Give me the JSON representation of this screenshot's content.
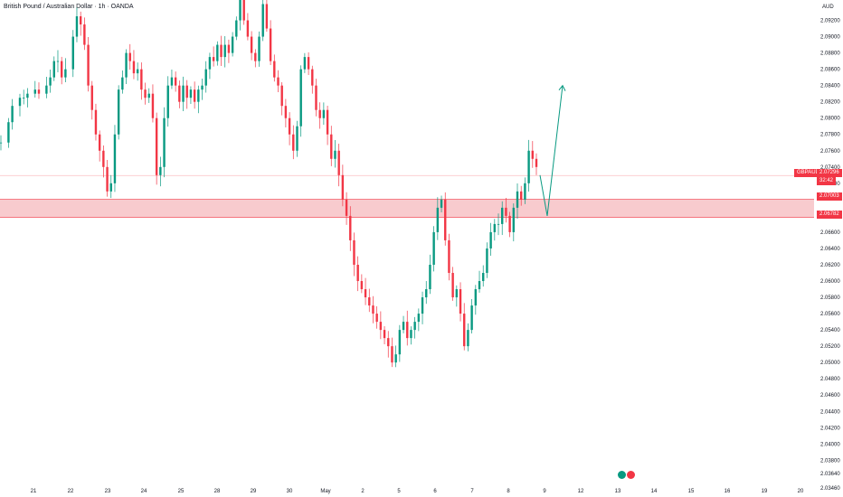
{
  "chart_data": {
    "type": "candlestick",
    "title": "British Pound / Australian Dollar · 1h · OANDA",
    "symbol": "GBPAUD",
    "currency": "AUD",
    "x_ticks": [
      "21",
      "22",
      "23",
      "24",
      "25",
      "28",
      "29",
      "30",
      "May",
      "2",
      "5",
      "6",
      "7",
      "8",
      "9",
      "12",
      "13",
      "14",
      "15",
      "16",
      "19",
      "20"
    ],
    "y_ticks": [
      "2.09200",
      "2.09000",
      "2.08800",
      "2.08600",
      "2.08400",
      "2.08200",
      "2.08000",
      "2.07800",
      "2.07600",
      "2.07400",
      "2.07200",
      "2.06600",
      "2.06400",
      "2.06200",
      "2.06000",
      "2.05800",
      "2.05600",
      "2.05400",
      "2.05200",
      "2.05000",
      "2.04800",
      "2.04600",
      "2.04400",
      "2.04200",
      "2.04000",
      "2.03800",
      "2.03640",
      "2.03460"
    ],
    "ylim": [
      2.0346,
      2.0945
    ],
    "last_price": "2.07296",
    "countdown": "32:42",
    "zone_top_label": "2.07003",
    "zone_bottom_label": "2.06782",
    "zone_top": 2.07003,
    "zone_bottom": 2.06782,
    "close_path": [
      [
        0,
        2.077
      ],
      [
        2,
        2.0795
      ],
      [
        3,
        2.0815
      ],
      [
        5,
        2.0825
      ],
      [
        6,
        2.0825
      ],
      [
        7,
        2.083
      ],
      [
        9,
        2.0835
      ],
      [
        10,
        2.083
      ],
      [
        12,
        2.084
      ],
      [
        13,
        2.085
      ],
      [
        14,
        2.087
      ],
      [
        15,
        2.087
      ],
      [
        16,
        2.085
      ],
      [
        17,
        2.086
      ],
      [
        19,
        2.09
      ],
      [
        20,
        2.0925
      ],
      [
        21,
        2.0915
      ],
      [
        22,
        2.089
      ],
      [
        23,
        2.084
      ],
      [
        24,
        2.081
      ],
      [
        25,
        2.078
      ],
      [
        26,
        2.076
      ],
      [
        27,
        2.074
      ],
      [
        28,
        2.071
      ],
      [
        29,
        2.072
      ],
      [
        30,
        2.078
      ],
      [
        31,
        2.0835
      ],
      [
        32,
        2.085
      ],
      [
        33,
        2.088
      ],
      [
        34,
        2.087
      ],
      [
        35,
        2.0855
      ],
      [
        36,
        2.086
      ],
      [
        37,
        2.0835
      ],
      [
        38,
        2.0825
      ],
      [
        39,
        2.083
      ],
      [
        40,
        2.08
      ],
      [
        41,
        2.073
      ],
      [
        42,
        2.074
      ],
      [
        43,
        2.08
      ],
      [
        44,
        2.084
      ],
      [
        45,
        2.085
      ],
      [
        46,
        2.084
      ],
      [
        47,
        2.082
      ],
      [
        48,
        2.084
      ],
      [
        49,
        2.0825
      ],
      [
        50,
        2.0835
      ],
      [
        51,
        2.082
      ],
      [
        52,
        2.0835
      ],
      [
        53,
        2.084
      ],
      [
        54,
        2.086
      ],
      [
        55,
        2.0875
      ],
      [
        56,
        2.087
      ],
      [
        57,
        2.089
      ],
      [
        58,
        2.0875
      ],
      [
        59,
        2.089
      ],
      [
        60,
        2.088
      ],
      [
        61,
        2.09
      ],
      [
        62,
        2.092
      ],
      [
        63,
        2.0945
      ],
      [
        64,
        2.092
      ],
      [
        65,
        2.09
      ],
      [
        66,
        2.088
      ],
      [
        67,
        2.087
      ],
      [
        68,
        2.09
      ],
      [
        69,
        2.094
      ],
      [
        70,
        2.091
      ],
      [
        71,
        2.087
      ],
      [
        72,
        2.085
      ],
      [
        73,
        2.084
      ],
      [
        74,
        2.0815
      ],
      [
        75,
        2.08
      ],
      [
        76,
        2.078
      ],
      [
        77,
        2.076
      ],
      [
        78,
        2.079
      ],
      [
        79,
        2.086
      ],
      [
        80,
        2.0875
      ],
      [
        81,
        2.086
      ],
      [
        82,
        2.084
      ],
      [
        83,
        2.081
      ],
      [
        84,
        2.08
      ],
      [
        85,
        2.081
      ],
      [
        86,
        2.078
      ],
      [
        87,
        2.075
      ],
      [
        88,
        2.076
      ],
      [
        89,
        2.073
      ],
      [
        90,
        2.07
      ],
      [
        91,
        2.068
      ],
      [
        92,
        2.065
      ],
      [
        93,
        2.062
      ],
      [
        94,
        2.06
      ],
      [
        95,
        2.059
      ],
      [
        96,
        2.058
      ],
      [
        97,
        2.057
      ],
      [
        98,
        2.056
      ],
      [
        99,
        2.055
      ],
      [
        100,
        2.054
      ],
      [
        101,
        2.053
      ],
      [
        102,
        2.052
      ],
      [
        103,
        2.05
      ],
      [
        104,
        2.051
      ],
      [
        105,
        2.054
      ],
      [
        106,
        2.055
      ],
      [
        107,
        2.053
      ],
      [
        108,
        2.054
      ],
      [
        109,
        2.055
      ],
      [
        110,
        2.056
      ],
      [
        111,
        2.058
      ],
      [
        112,
        2.059
      ],
      [
        113,
        2.062
      ],
      [
        114,
        2.066
      ],
      [
        115,
        2.069
      ],
      [
        116,
        2.07
      ],
      [
        117,
        2.065
      ],
      [
        118,
        2.061
      ],
      [
        119,
        2.058
      ],
      [
        120,
        2.059
      ],
      [
        121,
        2.056
      ],
      [
        122,
        2.052
      ],
      [
        123,
        2.054
      ],
      [
        124,
        2.057
      ],
      [
        125,
        2.059
      ],
      [
        126,
        2.06
      ],
      [
        127,
        2.061
      ],
      [
        128,
        2.064
      ],
      [
        129,
        2.066
      ],
      [
        130,
        2.067
      ],
      [
        131,
        2.067
      ],
      [
        132,
        2.069
      ],
      [
        133,
        2.068
      ],
      [
        134,
        2.066
      ],
      [
        135,
        2.069
      ],
      [
        136,
        2.071
      ],
      [
        137,
        2.07
      ],
      [
        138,
        2.072
      ],
      [
        139,
        2.076
      ],
      [
        140,
        2.075
      ],
      [
        141,
        2.074
      ]
    ],
    "projection": [
      [
        2.073
      ],
      [
        2.068
      ],
      [
        2.084
      ]
    ]
  }
}
